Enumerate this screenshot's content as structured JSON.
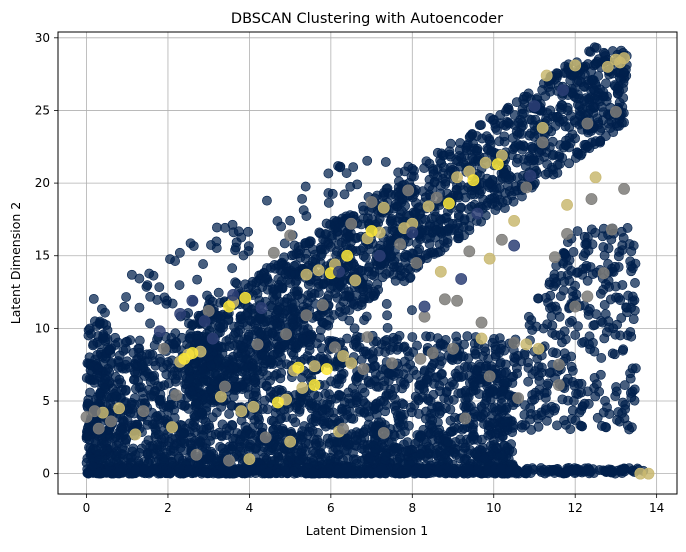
{
  "chart_data": {
    "type": "scatter",
    "title": "DBSCAN Clustering with Autoencoder",
    "xlabel": "Latent Dimension 1",
    "ylabel": "Latent Dimension 2",
    "xlim": [
      -0.7,
      14.5
    ],
    "ylim": [
      -1.4,
      30.4
    ],
    "xticks": [
      0,
      2,
      4,
      6,
      8,
      10,
      12,
      14
    ],
    "yticks": [
      0,
      5,
      10,
      15,
      20,
      25,
      30
    ],
    "grid": true,
    "colormap": "cividis",
    "colors": {
      "noise": "#00204c",
      "cluster_mid": "#7c7b78",
      "cluster_high": "#fde737",
      "cluster_tan": "#c9b870",
      "cluster_blue": "#2c3e74",
      "grid": "#b0b0b0",
      "axes": "#000000"
    },
    "clusters": [
      {
        "color": "#c9b870",
        "points": [
          [
            13.0,
            28.5
          ],
          [
            13.2,
            28.6
          ],
          [
            13.1,
            28.3
          ],
          [
            11.3,
            27.4
          ],
          [
            9.8,
            21.4
          ],
          [
            10.2,
            21.9
          ],
          [
            9.1,
            20.4
          ],
          [
            9.4,
            20.8
          ],
          [
            7.2,
            16.6
          ],
          [
            7.8,
            16.9
          ],
          [
            6.1,
            14.4
          ],
          [
            5.4,
            13.7
          ],
          [
            5.7,
            14.0
          ],
          [
            3.6,
            11.8
          ],
          [
            2.5,
            8.2
          ],
          [
            2.8,
            8.4
          ],
          [
            2.3,
            7.7
          ],
          [
            5.6,
            7.4
          ],
          [
            5.1,
            7.1
          ],
          [
            5.3,
            5.9
          ],
          [
            6.3,
            8.1
          ],
          [
            6.5,
            7.6
          ],
          [
            4.9,
            5.1
          ],
          [
            4.1,
            4.6
          ],
          [
            4.0,
            1.0
          ],
          [
            0.4,
            4.2
          ],
          [
            0.8,
            4.5
          ],
          [
            13.8,
            0.0
          ],
          [
            13.6,
            0.0
          ],
          [
            8.4,
            18.4
          ],
          [
            11.8,
            18.5
          ],
          [
            12.5,
            20.4
          ],
          [
            11.2,
            23.8
          ],
          [
            9.7,
            9.3
          ],
          [
            10.8,
            8.9
          ],
          [
            11.1,
            8.6
          ],
          [
            12.0,
            28.1
          ],
          [
            12.8,
            28.0
          ],
          [
            6.9,
            16.2
          ],
          [
            3.3,
            5.3
          ],
          [
            2.1,
            3.2
          ],
          [
            1.2,
            2.7
          ],
          [
            5.0,
            2.2
          ],
          [
            6.2,
            2.9
          ],
          [
            3.8,
            4.3
          ],
          [
            8.7,
            13.9
          ],
          [
            10.5,
            17.4
          ],
          [
            7.3,
            18.3
          ],
          [
            9.9,
            14.8
          ],
          [
            8.0,
            17.2
          ],
          [
            6.6,
            13.3
          ]
        ]
      },
      {
        "color": "#fde737",
        "points": [
          [
            5.6,
            6.1
          ],
          [
            5.2,
            7.3
          ],
          [
            5.9,
            7.2
          ],
          [
            3.5,
            11.5
          ],
          [
            2.4,
            7.9
          ],
          [
            2.6,
            8.3
          ],
          [
            6.4,
            15.0
          ],
          [
            7.0,
            16.7
          ],
          [
            9.5,
            20.2
          ],
          [
            10.1,
            21.3
          ],
          [
            8.9,
            18.6
          ],
          [
            3.9,
            12.1
          ],
          [
            4.7,
            4.9
          ],
          [
            6.0,
            13.8
          ]
        ]
      },
      {
        "color": "#7c7b78",
        "points": [
          [
            8.2,
            7.9
          ],
          [
            8.5,
            8.3
          ],
          [
            9.0,
            8.6
          ],
          [
            7.5,
            7.6
          ],
          [
            6.8,
            7.2
          ],
          [
            10.5,
            9.0
          ],
          [
            9.7,
            10.4
          ],
          [
            12.0,
            11.5
          ],
          [
            12.3,
            12.2
          ],
          [
            11.5,
            14.9
          ],
          [
            11.8,
            16.5
          ],
          [
            12.4,
            18.9
          ],
          [
            10.8,
            19.7
          ],
          [
            7.9,
            19.5
          ],
          [
            8.6,
            19.0
          ],
          [
            7.0,
            18.7
          ],
          [
            6.5,
            17.2
          ],
          [
            7.7,
            15.8
          ],
          [
            8.1,
            14.5
          ],
          [
            4.6,
            15.2
          ],
          [
            5.0,
            16.4
          ],
          [
            4.2,
            8.9
          ],
          [
            6.1,
            8.7
          ],
          [
            6.9,
            9.4
          ],
          [
            8.8,
            12.0
          ],
          [
            3.4,
            6.0
          ],
          [
            2.2,
            5.4
          ],
          [
            1.4,
            4.3
          ],
          [
            0.6,
            3.6
          ],
          [
            0.3,
            3.1
          ],
          [
            0.0,
            3.9
          ],
          [
            0.2,
            4.3
          ],
          [
            9.3,
            3.8
          ],
          [
            10.6,
            5.2
          ],
          [
            11.6,
            6.1
          ],
          [
            9.9,
            6.7
          ],
          [
            11.2,
            22.8
          ],
          [
            12.3,
            24.1
          ],
          [
            13.0,
            24.9
          ],
          [
            11.6,
            7.5
          ],
          [
            5.4,
            10.9
          ],
          [
            3.0,
            11.2
          ],
          [
            10.2,
            16.1
          ],
          [
            9.4,
            15.3
          ],
          [
            6.3,
            3.1
          ],
          [
            2.7,
            1.3
          ],
          [
            3.5,
            0.9
          ],
          [
            4.4,
            2.5
          ],
          [
            7.3,
            2.8
          ],
          [
            12.7,
            13.8
          ],
          [
            13.2,
            19.6
          ],
          [
            8.3,
            10.8
          ],
          [
            9.1,
            11.9
          ],
          [
            5.8,
            11.6
          ],
          [
            4.9,
            9.6
          ],
          [
            12.9,
            16.8
          ],
          [
            1.9,
            8.6
          ]
        ]
      },
      {
        "color": "#2c3e74",
        "points": [
          [
            2.3,
            11.0
          ],
          [
            2.9,
            10.5
          ],
          [
            3.6,
            12.3
          ],
          [
            1.8,
            9.8
          ],
          [
            8.3,
            11.5
          ],
          [
            9.2,
            13.4
          ],
          [
            10.5,
            15.7
          ],
          [
            11.0,
            25.3
          ],
          [
            11.7,
            26.4
          ],
          [
            7.2,
            15.0
          ],
          [
            6.2,
            13.9
          ],
          [
            4.3,
            11.4
          ],
          [
            2.6,
            11.9
          ],
          [
            3.1,
            9.3
          ],
          [
            8.0,
            16.6
          ],
          [
            9.6,
            17.9
          ],
          [
            10.9,
            20.5
          ]
        ]
      }
    ]
  }
}
